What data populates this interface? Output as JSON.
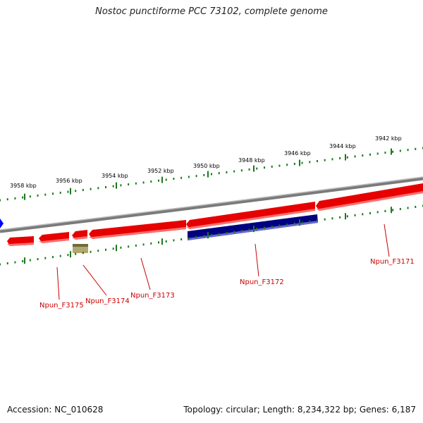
{
  "title": "Nostoc punctiforme PCC 73102, complete genome",
  "footer": {
    "accession": "Accession: NC_010628",
    "summary": "Topology: circular; Length: 8,234,322 bp; Genes: 6,187"
  },
  "colors": {
    "forward_gene": "#e60000",
    "reverse_gene": "#000080",
    "rna_feature": "#b0a870",
    "backbone": "#808080",
    "ticks": "#1a7a1a",
    "label": "#cc0000",
    "start_marker": "#0000ff"
  },
  "kbp_ticks": [
    "3958 kbp",
    "3956 kbp",
    "3954 kbp",
    "3952 kbp",
    "3950 kbp",
    "3948 kbp",
    "3946 kbp",
    "3944 kbp",
    "3942 kbp"
  ],
  "gene_labels": [
    "Npun_F3175",
    "Npun_F3174",
    "Npun_F3173",
    "Npun_F3172",
    "Npun_F3171"
  ]
}
